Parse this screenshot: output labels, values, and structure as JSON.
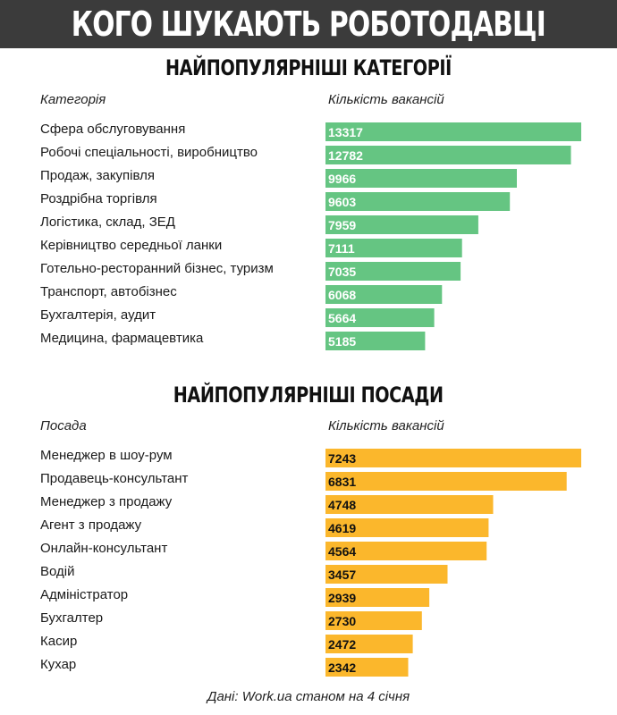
{
  "header": {
    "title": "КОГО ШУКАЮТЬ РОБОТОДАВЦІ"
  },
  "footer": {
    "source": "Дані: Work.ua станом на 4 січня"
  },
  "chart_data": [
    {
      "type": "bar",
      "orientation": "horizontal",
      "title": "НАЙПОПУЛЯРНІШІ КАТЕГОРІЇ",
      "xlabel": "Кількість вакансій",
      "ylabel": "Категорія",
      "color": "#65c582",
      "label_color": "#ffffff",
      "categories": [
        "Сфера обслуговування",
        "Робочі спеціальності, виробництво",
        "Продаж, закупівля",
        "Роздрібна торгівля",
        "Логістика, склад, ЗЕД",
        "Керівництво середньої ланки",
        "Готельно-ресторанний бізнес, туризм",
        "Транспорт, автобізнес",
        "Бухгалтерія, аудит",
        "Медицина, фармацевтика"
      ],
      "values": [
        13317,
        12782,
        9966,
        9603,
        7959,
        7111,
        7035,
        6068,
        5664,
        5185
      ]
    },
    {
      "type": "bar",
      "orientation": "horizontal",
      "title": "НАЙПОПУЛЯРНІШІ ПОСАДИ",
      "xlabel": "Кількість вакансій",
      "ylabel": "Посада",
      "color": "#fbb72c",
      "label_color": "#111111",
      "categories": [
        "Менеджер в шоу-рум",
        "Продавець-консультант",
        "Менеджер з продажу",
        "Агент з продажу",
        "Онлайн-консультант",
        "Водій",
        "Адміністратор",
        "Бухгалтер",
        "Касир",
        "Кухар"
      ],
      "values": [
        7243,
        6831,
        4748,
        4619,
        4564,
        3457,
        2939,
        2730,
        2472,
        2342
      ]
    }
  ]
}
